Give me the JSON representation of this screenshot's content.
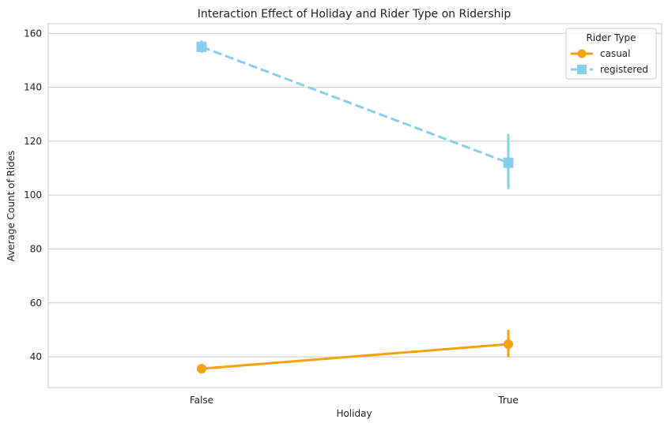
{
  "chart_data": {
    "type": "line",
    "title": "Interaction Effect of Holiday and Rider Type on Ridership",
    "xlabel": "Holiday",
    "ylabel": "Average Count of Rides",
    "categories": [
      "False",
      "True"
    ],
    "ylim": [
      28.6,
      163.6
    ],
    "yticks": [
      40,
      60,
      80,
      100,
      120,
      140,
      160
    ],
    "grid": "horizontal",
    "legend": {
      "title": "Rider Type",
      "placement": "top-right"
    },
    "series": [
      {
        "name": "casual",
        "values": [
          35.6,
          44.7
        ],
        "error_low": [
          34.8,
          39.8
        ],
        "error_high": [
          36.4,
          50.0
        ],
        "color": "#f5a10b",
        "marker": "circle",
        "linestyle": "solid"
      },
      {
        "name": "registered",
        "values": [
          155.0,
          112.0
        ],
        "error_low": [
          152.9,
          102.2
        ],
        "error_high": [
          157.4,
          122.7
        ],
        "color": "#87ceeb",
        "marker": "square",
        "linestyle": "dashed"
      }
    ]
  }
}
